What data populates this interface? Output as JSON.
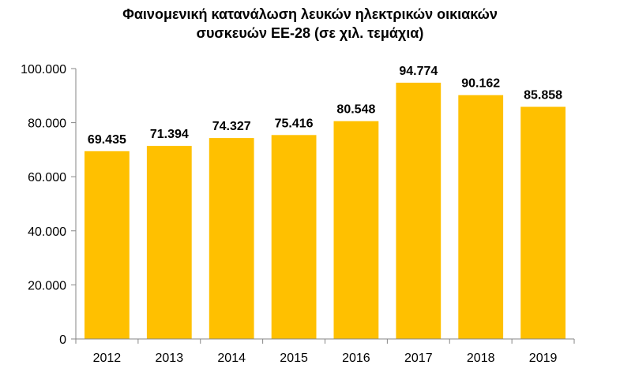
{
  "chart_data": {
    "type": "bar",
    "title_lines": [
      "Φαινομενική κατανάλωση λευκών ηλεκτρικών οικιακών",
      "συσκευών ΕΕ-28 (σε χιλ. τεμάχια)"
    ],
    "categories": [
      "2012",
      "2013",
      "2014",
      "2015",
      "2016",
      "2017",
      "2018",
      "2019"
    ],
    "values": [
      69435,
      71394,
      74327,
      75416,
      80548,
      94774,
      90162,
      85858
    ],
    "value_labels": [
      "69.435",
      "71.394",
      "74.327",
      "75.416",
      "80.548",
      "94.774",
      "90.162",
      "85.858"
    ],
    "ylim": [
      0,
      100000
    ],
    "yticks": [
      0,
      20000,
      40000,
      60000,
      80000,
      100000
    ],
    "ytick_labels": [
      "0",
      "20.000",
      "40.000",
      "60.000",
      "80.000",
      "100.000"
    ],
    "xlabel": "",
    "ylabel": "",
    "grid": false,
    "legend": "none",
    "bar_color": "#FFC000",
    "axis_color": "#868686"
  }
}
